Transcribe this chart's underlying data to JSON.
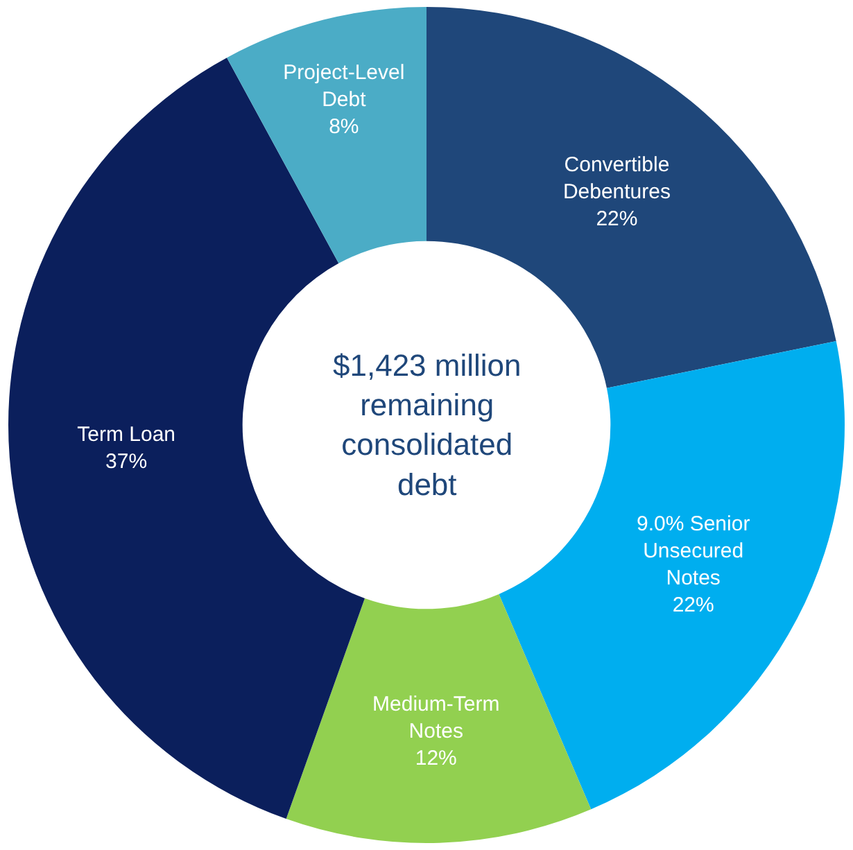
{
  "chart_data": {
    "type": "donut",
    "categories": [
      "Convertible Debentures",
      "9.0% Senior Unsecured Notes",
      "Medium-Term Notes",
      "Term Loan",
      "Project-Level Debt"
    ],
    "values": [
      22,
      22,
      12,
      37,
      8
    ],
    "value_labels": [
      "22%",
      "22%",
      "12%",
      "37%",
      "8%"
    ],
    "colors": [
      "#1f477a",
      "#00aeef",
      "#92d050",
      "#0b1f5c",
      "#4bacc6"
    ],
    "annotations": [
      "$1,423 million remaining consolidated debt"
    ],
    "legend": false
  }
}
